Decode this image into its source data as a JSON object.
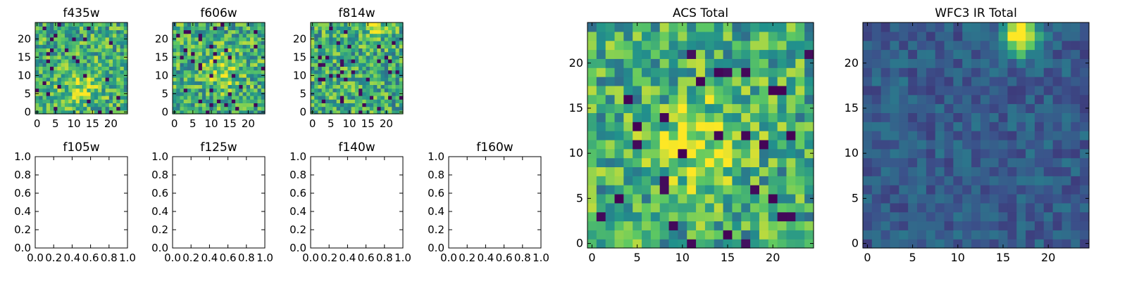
{
  "chart_data": [
    {
      "type": "heatmap",
      "title": "f435w",
      "x_ticks": [
        "0",
        "5",
        "10",
        "15",
        "20"
      ],
      "y_ticks": [
        "0",
        "5",
        "10",
        "15",
        "20"
      ],
      "xlim": [
        -0.5,
        24.5
      ],
      "ylim": [
        -0.5,
        24.5
      ],
      "grid_size": 25,
      "colormap": "viridis",
      "seed": 435,
      "bright_center": [
        12,
        7
      ],
      "bright_radius": 5
    },
    {
      "type": "heatmap",
      "title": "f606w",
      "x_ticks": [
        "0",
        "5",
        "10",
        "15",
        "20"
      ],
      "y_ticks": [
        "0",
        "5",
        "10",
        "15",
        "20"
      ],
      "xlim": [
        -0.5,
        24.5
      ],
      "ylim": [
        -0.5,
        24.5
      ],
      "grid_size": 25,
      "colormap": "viridis",
      "seed": 606,
      "bright_center": [
        13,
        11
      ],
      "bright_radius": 5
    },
    {
      "type": "heatmap",
      "title": "f814w",
      "x_ticks": [
        "0",
        "5",
        "10",
        "15",
        "20"
      ],
      "y_ticks": [
        "0",
        "5",
        "10",
        "15",
        "20"
      ],
      "xlim": [
        -0.5,
        24.5
      ],
      "ylim": [
        -0.5,
        24.5
      ],
      "grid_size": 25,
      "colormap": "viridis",
      "seed": 814,
      "bright_center": [
        17,
        23
      ],
      "bright_radius": 3
    },
    {
      "type": "line",
      "title": "f105w",
      "x_ticks": [
        "0.0",
        "0.2",
        "0.4",
        "0.6",
        "0.8",
        "1.0"
      ],
      "y_ticks": [
        "0.0",
        "0.2",
        "0.4",
        "0.6",
        "0.8",
        "1.0"
      ],
      "xlim": [
        0,
        1
      ],
      "ylim": [
        0,
        1
      ],
      "series": []
    },
    {
      "type": "line",
      "title": "f125w",
      "x_ticks": [
        "0.0",
        "0.2",
        "0.4",
        "0.6",
        "0.8",
        "1.0"
      ],
      "y_ticks": [
        "0.0",
        "0.2",
        "0.4",
        "0.6",
        "0.8",
        "1.0"
      ],
      "xlim": [
        0,
        1
      ],
      "ylim": [
        0,
        1
      ],
      "series": []
    },
    {
      "type": "line",
      "title": "f140w",
      "x_ticks": [
        "0.0",
        "0.2",
        "0.4",
        "0.6",
        "0.8",
        "1.0"
      ],
      "y_ticks": [
        "0.0",
        "0.2",
        "0.4",
        "0.6",
        "0.8",
        "1.0"
      ],
      "xlim": [
        0,
        1
      ],
      "ylim": [
        0,
        1
      ],
      "series": []
    },
    {
      "type": "line",
      "title": "f160w",
      "x_ticks": [
        "0.0",
        "0.2",
        "0.4",
        "0.6",
        "0.8",
        "1.0"
      ],
      "y_ticks": [
        "0.0",
        "0.2",
        "0.4",
        "0.6",
        "0.8",
        "1.0"
      ],
      "xlim": [
        0,
        1
      ],
      "ylim": [
        0,
        1
      ],
      "series": []
    },
    {
      "type": "heatmap",
      "title": "ACS Total",
      "x_ticks": [
        "0",
        "5",
        "10",
        "15",
        "20"
      ],
      "y_ticks": [
        "0",
        "5",
        "10",
        "15",
        "20"
      ],
      "xlim": [
        -0.5,
        24.5
      ],
      "ylim": [
        -0.5,
        24.5
      ],
      "grid_size": 25,
      "colormap": "viridis",
      "seed": 1001,
      "bright_center": [
        12,
        11
      ],
      "bright_radius": 5
    },
    {
      "type": "heatmap",
      "title": "WFC3 IR Total",
      "x_ticks": [
        "0",
        "5",
        "10",
        "15",
        "20"
      ],
      "y_ticks": [
        "0",
        "5",
        "10",
        "15",
        "20"
      ],
      "xlim": [
        -0.5,
        24.5
      ],
      "ylim": [
        -0.5,
        24.5
      ],
      "grid_size": 25,
      "colormap": "viridis",
      "seed": 2002,
      "bright_center": [
        17,
        23
      ],
      "bright_radius": 2,
      "dim": true
    }
  ]
}
